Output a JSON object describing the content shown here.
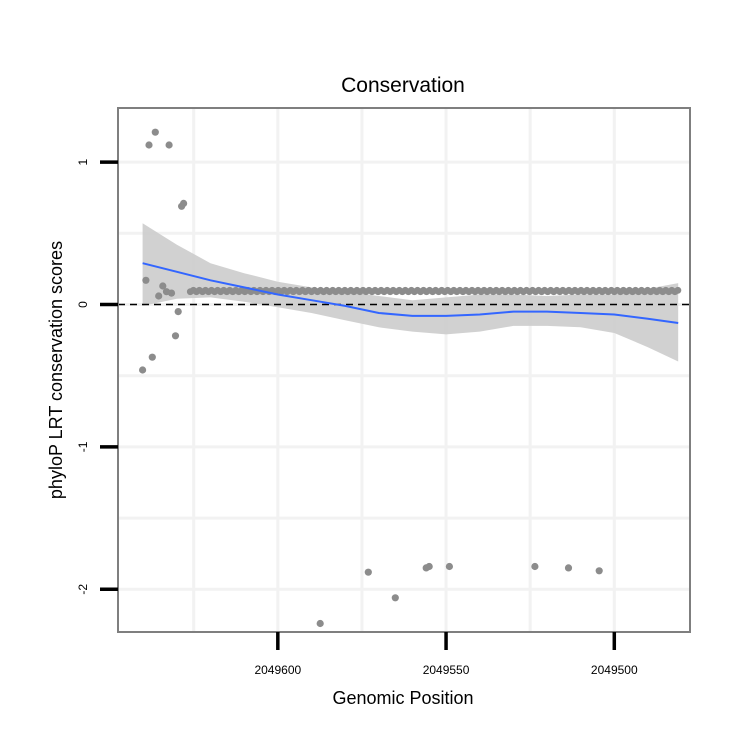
{
  "chart_data": {
    "type": "scatter",
    "title": "Conservation",
    "xlabel": "Genomic Position",
    "ylabel": "phyloP LRT conservation scores",
    "x_reversed": true,
    "xlim": [
      2049647.5,
      2049477.5
    ],
    "ylim": [
      -2.3,
      1.38
    ],
    "x_ticks": [
      2049600,
      2049550,
      2049500
    ],
    "x_tick_labels": [
      "2049600",
      "2049550",
      "2049500"
    ],
    "y_ticks": [
      1,
      0,
      -1,
      -2
    ],
    "y_tick_labels": [
      "1",
      "0",
      "-1",
      "-2"
    ],
    "grid": true,
    "reference_line": {
      "y": 0,
      "style": "dashed",
      "color": "#000000"
    },
    "colors": {
      "points": "#8c8c8c",
      "smooth_line": "#3366ff",
      "ribbon": "#cccccc",
      "panel_border": "#7f7f7f",
      "grid": "#f2f2f2"
    },
    "outlier_points": [
      {
        "x": 2049640.2,
        "y": -0.46
      },
      {
        "x": 2049639.2,
        "y": 0.17
      },
      {
        "x": 2049638.3,
        "y": 1.12
      },
      {
        "x": 2049637.3,
        "y": -0.37
      },
      {
        "x": 2049636.4,
        "y": 1.21
      },
      {
        "x": 2049635.4,
        "y": 0.06
      },
      {
        "x": 2049634.2,
        "y": 0.13
      },
      {
        "x": 2049633.1,
        "y": 0.09
      },
      {
        "x": 2049632.3,
        "y": 1.12
      },
      {
        "x": 2049631.6,
        "y": 0.08
      },
      {
        "x": 2049630.4,
        "y": -0.22
      },
      {
        "x": 2049629.6,
        "y": -0.05
      },
      {
        "x": 2049628.6,
        "y": 0.69
      },
      {
        "x": 2049628.0,
        "y": 0.71
      },
      {
        "x": 2049587.4,
        "y": -2.24
      },
      {
        "x": 2049573.1,
        "y": -1.88
      },
      {
        "x": 2049565.1,
        "y": -2.06
      },
      {
        "x": 2049555.9,
        "y": -1.85
      },
      {
        "x": 2049555.0,
        "y": -1.84
      },
      {
        "x": 2049549.0,
        "y": -1.84
      },
      {
        "x": 2049523.6,
        "y": -1.84
      },
      {
        "x": 2049513.6,
        "y": -1.85
      },
      {
        "x": 2049504.5,
        "y": -1.87
      }
    ],
    "baseline_band": {
      "x_start": 2049626,
      "x_end": 2049481,
      "y_values": [
        0.09,
        0.1
      ],
      "description_note": "dense row of conserved-site points near 0.09"
    },
    "smooth_fit": {
      "method": "loess",
      "x": [
        2049640.2,
        2049630,
        2049620,
        2049610,
        2049600,
        2049590,
        2049580,
        2049570,
        2049560,
        2049550,
        2049540,
        2049530,
        2049520,
        2049510,
        2049500,
        2049490,
        2049481
      ],
      "y": [
        0.29,
        0.23,
        0.17,
        0.12,
        0.07,
        0.03,
        -0.01,
        -0.06,
        -0.08,
        -0.08,
        -0.07,
        -0.05,
        -0.05,
        -0.06,
        -0.07,
        -0.1,
        -0.13
      ],
      "lower": [
        -0.01,
        0.04,
        0.05,
        0.02,
        -0.02,
        -0.06,
        -0.11,
        -0.16,
        -0.19,
        -0.21,
        -0.19,
        -0.15,
        -0.15,
        -0.16,
        -0.2,
        -0.3,
        -0.4
      ],
      "upper": [
        0.57,
        0.42,
        0.29,
        0.22,
        0.16,
        0.12,
        0.09,
        0.06,
        0.03,
        0.05,
        0.07,
        0.07,
        0.06,
        0.07,
        0.07,
        0.11,
        0.15
      ]
    }
  }
}
